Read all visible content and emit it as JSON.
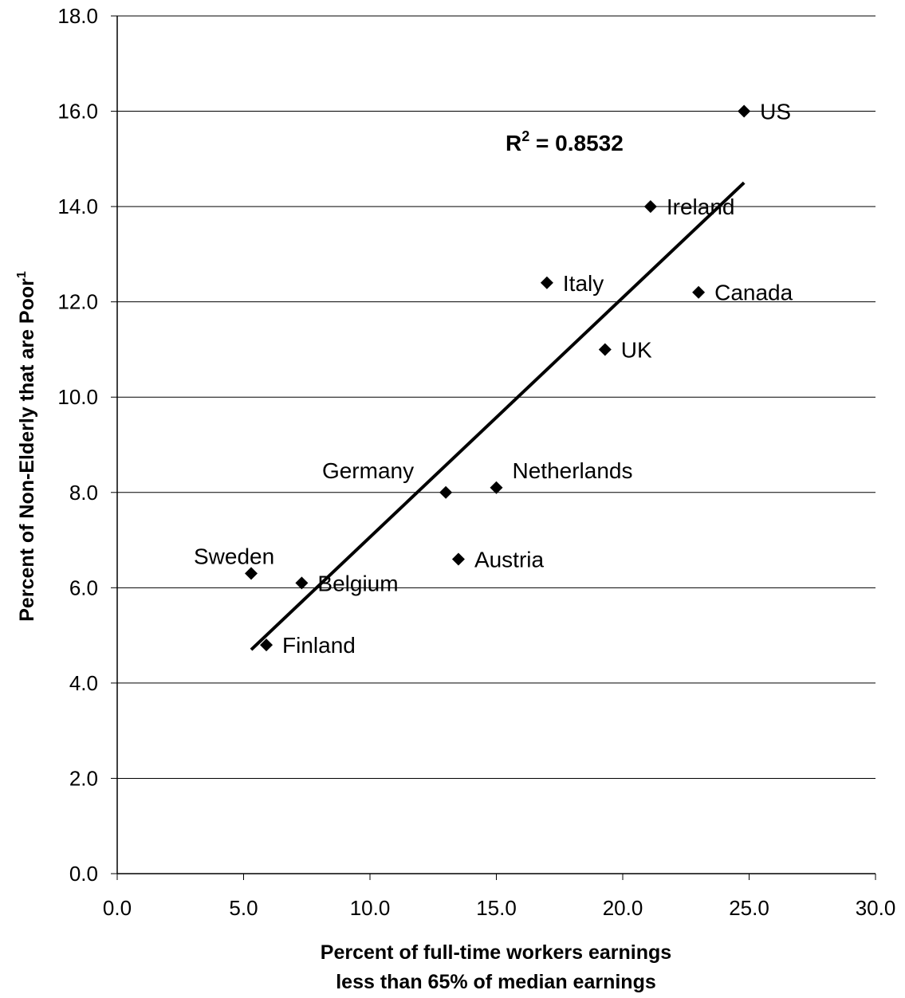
{
  "chart_data": {
    "type": "scatter",
    "xlabel_lines": [
      "Percent of full-time workers earnings",
      "less than 65% of median earnings"
    ],
    "ylabel": "Percent of Non-Elderly that are Poor",
    "ylabel_superscript": "1",
    "xlim": [
      0,
      30
    ],
    "ylim": [
      0,
      18
    ],
    "x_ticks": [
      "0.0",
      "5.0",
      "10.0",
      "15.0",
      "20.0",
      "25.0",
      "30.0"
    ],
    "y_ticks": [
      "0.0",
      "2.0",
      "4.0",
      "6.0",
      "8.0",
      "10.0",
      "12.0",
      "14.0",
      "16.0",
      "18.0"
    ],
    "grid": "horizontal",
    "marker": "diamond",
    "marker_color": "#000000",
    "points": [
      {
        "label": "US",
        "x": 24.8,
        "y": 16.0
      },
      {
        "label": "Ireland",
        "x": 21.1,
        "y": 14.0
      },
      {
        "label": "Italy",
        "x": 17.0,
        "y": 12.4
      },
      {
        "label": "Canada",
        "x": 23.0,
        "y": 12.2
      },
      {
        "label": "UK",
        "x": 19.3,
        "y": 11.0
      },
      {
        "label": "Germany",
        "x": 13.0,
        "y": 8.0
      },
      {
        "label": "Netherlands",
        "x": 15.0,
        "y": 8.1
      },
      {
        "label": "Austria",
        "x": 13.5,
        "y": 6.6
      },
      {
        "label": "Sweden",
        "x": 5.3,
        "y": 6.3
      },
      {
        "label": "Belgium",
        "x": 7.3,
        "y": 6.1
      },
      {
        "label": "Finland",
        "x": 5.9,
        "y": 4.8
      }
    ],
    "trendline": {
      "x": [
        5.3,
        24.8
      ],
      "y": [
        4.7,
        14.5
      ]
    },
    "annotation": {
      "base": "R",
      "sup": "2",
      "rest": " = 0.8532"
    }
  }
}
